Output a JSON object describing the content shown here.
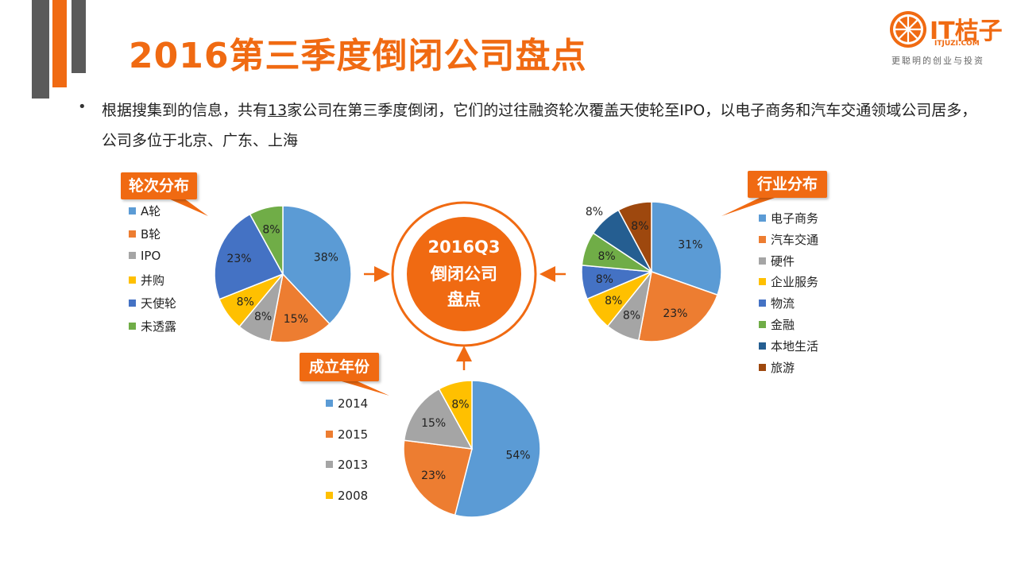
{
  "header": {
    "title": "2016第三季度倒闭公司盘点",
    "logo_text": "IT桔子",
    "logo_url": "ITJUZI.COM",
    "logo_slogan": "更聪明的创业与投资"
  },
  "intro": {
    "bullet": "•",
    "text_before": "根据搜集到的信息，共有",
    "count": "13",
    "text_after": "家公司在第三季度倒闭，它们的过往融资轮次覆盖天使轮至IPO，以电子商务和汽车交通领域公司居多，公司多位于北京、广东、上海"
  },
  "center": {
    "line1": "2016Q3",
    "line2": "倒闭公司",
    "line3": "盘点"
  },
  "callouts": {
    "rounds": "轮次分布",
    "industry": "行业分布",
    "years": "成立年份"
  },
  "chart_data": [
    {
      "type": "pie",
      "title": "轮次分布",
      "categories": [
        "A轮",
        "B轮",
        "IPO",
        "并购",
        "天使轮",
        "未透露"
      ],
      "values": [
        38,
        15,
        8,
        8,
        23,
        8
      ],
      "labels": [
        "38%",
        "15%",
        "8%",
        "8%",
        "23%",
        "8%"
      ],
      "colors": [
        "#5b9bd5",
        "#ed7d31",
        "#a5a5a5",
        "#ffc000",
        "#4472c4",
        "#70ad47"
      ],
      "legend": "left"
    },
    {
      "type": "pie",
      "title": "行业分布",
      "categories": [
        "电子商务",
        "汽车交通",
        "硬件",
        "企业服务",
        "物流",
        "金融",
        "本地生活",
        "旅游"
      ],
      "values": [
        31,
        23,
        8,
        8,
        8,
        8,
        8,
        8
      ],
      "labels": [
        "31%",
        "23%",
        "8%",
        "8%",
        "8%",
        "8%",
        "8%",
        "8%"
      ],
      "colors": [
        "#5b9bd5",
        "#ed7d31",
        "#a5a5a5",
        "#ffc000",
        "#4472c4",
        "#70ad47",
        "#255e91",
        "#9e480e"
      ],
      "legend": "right"
    },
    {
      "type": "pie",
      "title": "成立年份",
      "categories": [
        "2014",
        "2015",
        "2013",
        "2008"
      ],
      "values": [
        54,
        23,
        15,
        8
      ],
      "labels": [
        "54%",
        "23%",
        "15%",
        "8%"
      ],
      "colors": [
        "#5b9bd5",
        "#ed7d31",
        "#a5a5a5",
        "#ffc000"
      ],
      "legend": "left"
    }
  ]
}
